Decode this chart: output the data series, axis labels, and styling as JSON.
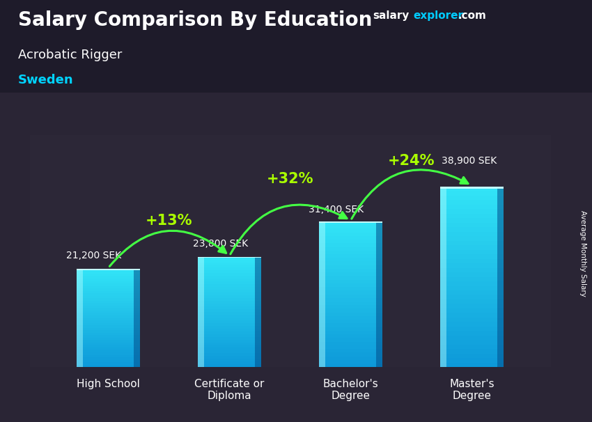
{
  "title": "Salary Comparison By Education",
  "subtitle_job": "Acrobatic Rigger",
  "subtitle_country": "Sweden",
  "ylabel": "Average Monthly Salary",
  "categories": [
    "High School",
    "Certificate or\nDiploma",
    "Bachelor's\nDegree",
    "Master's\nDegree"
  ],
  "values": [
    21200,
    23800,
    31400,
    38900
  ],
  "value_labels": [
    "21,200 SEK",
    "23,800 SEK",
    "31,400 SEK",
    "38,900 SEK"
  ],
  "pct_labels": [
    "+13%",
    "+32%",
    "+24%"
  ],
  "bg_color": "#2a2535",
  "title_color": "#ffffff",
  "subtitle_job_color": "#ffffff",
  "subtitle_country_color": "#00d4ff",
  "value_label_color": "#ffffff",
  "pct_color": "#aaff00",
  "arrow_color": "#44ff44",
  "ylim": [
    0,
    50000
  ],
  "bar_width": 0.52,
  "figsize": [
    8.5,
    6.06
  ],
  "dpi": 100,
  "flag_blue": "#006AA7",
  "flag_yellow": "#FECC02"
}
